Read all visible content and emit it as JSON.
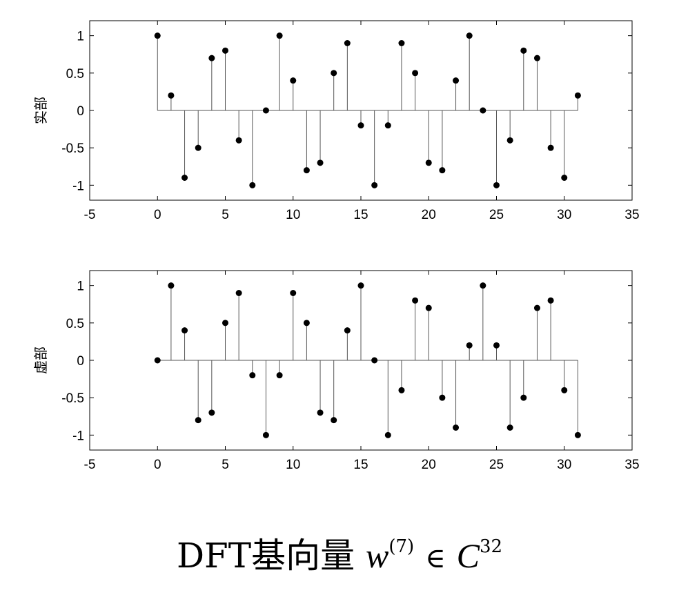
{
  "chart_data": [
    {
      "type": "stem",
      "ylabel": "实部",
      "xlim": [
        -5,
        35
      ],
      "ylim": [
        -1.2,
        1.2
      ],
      "xticks": [
        "-5",
        "0",
        "5",
        "10",
        "15",
        "20",
        "25",
        "30",
        "35"
      ],
      "yticks": [
        "1",
        "0.5",
        "0",
        "-0.5",
        "-1"
      ],
      "x": [
        0,
        1,
        2,
        3,
        4,
        5,
        6,
        7,
        8,
        9,
        10,
        11,
        12,
        13,
        14,
        15,
        16,
        17,
        18,
        19,
        20,
        21,
        22,
        23,
        24,
        25,
        26,
        27,
        28,
        29,
        30,
        31
      ],
      "values": [
        1,
        0.2,
        -0.9,
        -0.5,
        0.7,
        0.8,
        -0.4,
        -1,
        0,
        1,
        0.4,
        -0.8,
        -0.7,
        0.5,
        0.9,
        -0.2,
        -1,
        -0.2,
        0.9,
        0.5,
        -0.7,
        -0.8,
        0.4,
        1,
        0,
        -1,
        -0.4,
        0.8,
        0.7,
        -0.5,
        -0.9,
        0.2
      ]
    },
    {
      "type": "stem",
      "ylabel": "虚部",
      "xlim": [
        -5,
        35
      ],
      "ylim": [
        -1.2,
        1.2
      ],
      "xticks": [
        "-5",
        "0",
        "5",
        "10",
        "15",
        "20",
        "25",
        "30",
        "35"
      ],
      "yticks": [
        "1",
        "0.5",
        "0",
        "-0.5",
        "-1"
      ],
      "x": [
        0,
        1,
        2,
        3,
        4,
        5,
        6,
        7,
        8,
        9,
        10,
        11,
        12,
        13,
        14,
        15,
        16,
        17,
        18,
        19,
        20,
        21,
        22,
        23,
        24,
        25,
        26,
        27,
        28,
        29,
        30,
        31
      ],
      "values": [
        0,
        1,
        0.4,
        -0.8,
        -0.7,
        0.5,
        0.9,
        -0.2,
        -1,
        -0.2,
        0.9,
        0.5,
        -0.7,
        -0.8,
        0.4,
        1,
        0,
        -1,
        -0.4,
        0.8,
        0.7,
        -0.5,
        -0.9,
        0.2,
        1,
        0.2,
        -0.9,
        -0.5,
        0.7,
        0.8,
        -0.4,
        -1
      ]
    }
  ],
  "caption": {
    "prefix": "DFT基向量 ",
    "var": "w",
    "sup1": "(7)",
    "symbol": "∈",
    "set": "C",
    "sup2": "32"
  }
}
